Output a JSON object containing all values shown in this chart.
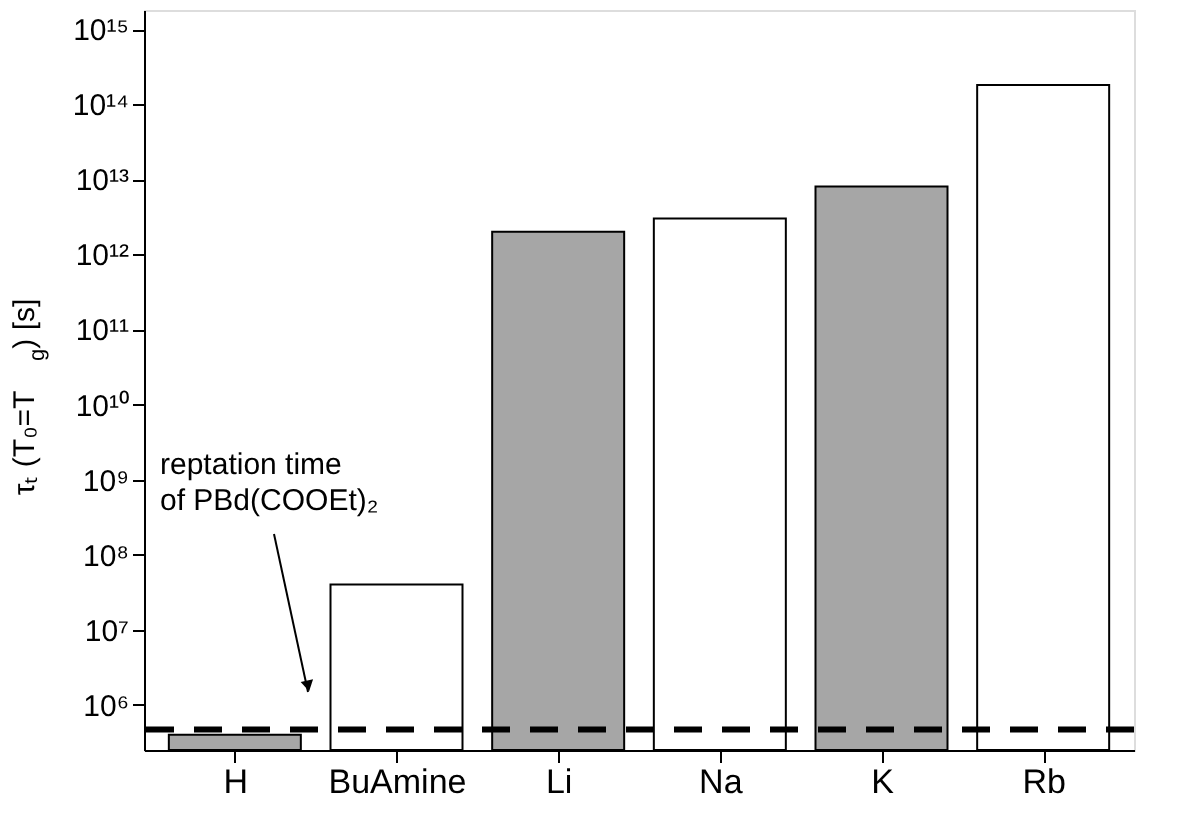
{
  "chart_data": {
    "type": "bar",
    "ylabel": "τₜ (T₀=T$_{g}$) [s]",
    "categories": [
      "H",
      "BuAmine",
      "Li",
      "Na",
      "K",
      "Rb"
    ],
    "values": [
      400000.0,
      40000000.0,
      2000000000000.0,
      3000000000000.0,
      8000000000000.0,
      180000000000000.0
    ],
    "colors": [
      "#a6a6a6",
      "#ffffff",
      "#a6a6a6",
      "#ffffff",
      "#a6a6a6",
      "#ffffff"
    ],
    "log": true,
    "ylim": [
      250000.0,
      1800000000000000.0
    ],
    "yticks": [
      {
        "value": 1000000.0,
        "label": "10⁶"
      },
      {
        "value": 10000000.0,
        "label": "10⁷"
      },
      {
        "value": 100000000.0,
        "label": "10⁸"
      },
      {
        "value": 1000000000.0,
        "label": "10⁹"
      },
      {
        "value": 10000000000.0,
        "label": "10¹⁰"
      },
      {
        "value": 100000000000.0,
        "label": "10¹¹"
      },
      {
        "value": 1000000000000.0,
        "label": "10¹²"
      },
      {
        "value": 10000000000000.0,
        "label": "10¹³"
      },
      {
        "value": 100000000000000.0,
        "label": "10¹⁴"
      },
      {
        "value": 1000000000000000.0,
        "label": "10¹⁵"
      }
    ],
    "ref_lines": [
      {
        "axis": "y",
        "value": 470000.0,
        "label": "reptation time of PBd(COOEt)₂",
        "color": "#000000",
        "line_style": "dashed"
      }
    ],
    "grid": false
  }
}
